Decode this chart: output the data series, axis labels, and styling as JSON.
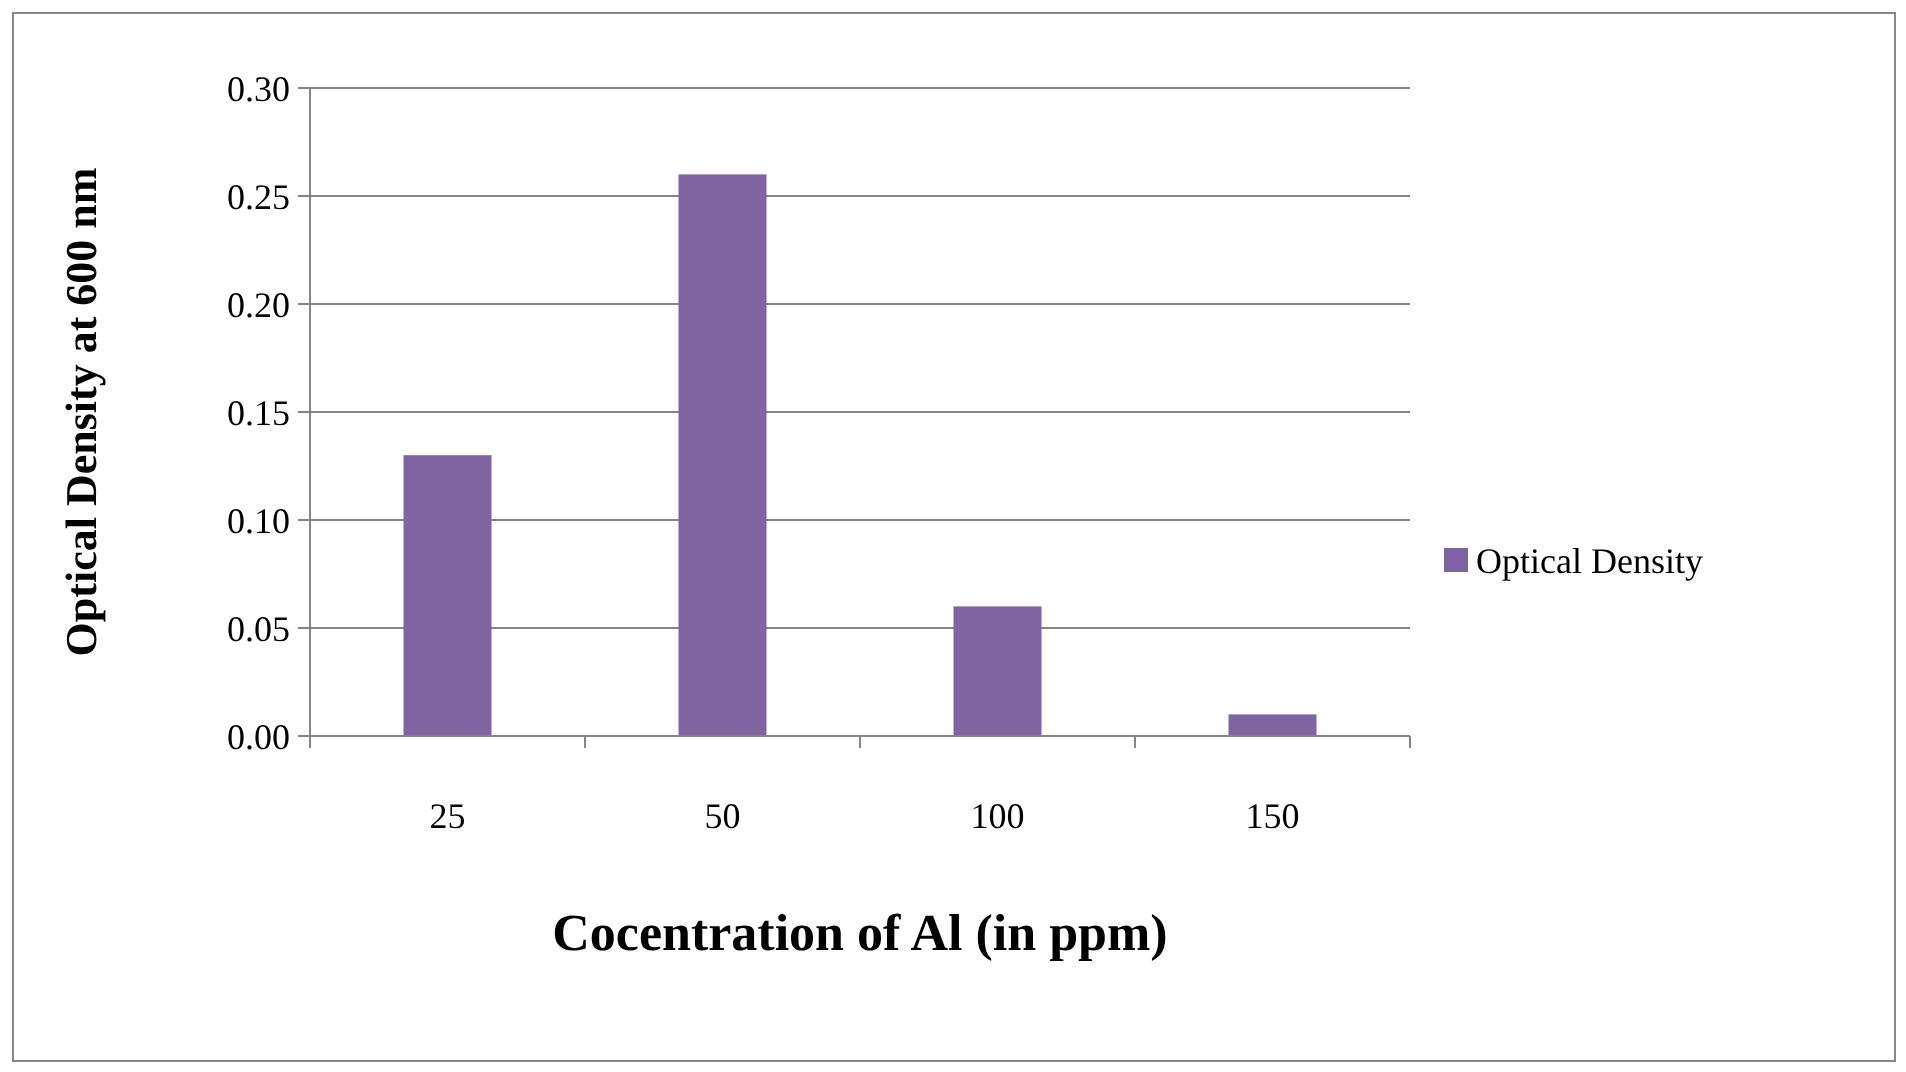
{
  "chart_data": {
    "type": "bar",
    "xlabel": "Cocentration  of Al (in ppm)",
    "ylabel": "Optical Density at 600 nm",
    "categories": [
      "25",
      "50",
      "100",
      "150"
    ],
    "series": [
      {
        "name": "Optical Density",
        "color": "#8064a2",
        "values": [
          0.13,
          0.26,
          0.06,
          0.01
        ]
      }
    ],
    "ylim": [
      0,
      0.3
    ],
    "yticks": [
      {
        "value": 0,
        "label": "0.00"
      },
      {
        "value": 0.05,
        "label": "0.05"
      },
      {
        "value": 0.1,
        "label": "0.10"
      },
      {
        "value": 0.15,
        "label": "0.15"
      },
      {
        "value": 0.2,
        "label": "0.20"
      },
      {
        "value": 0.25,
        "label": "0.25"
      },
      {
        "value": 0.3,
        "label": "0.30"
      }
    ],
    "grid": "y",
    "legend": "right"
  }
}
